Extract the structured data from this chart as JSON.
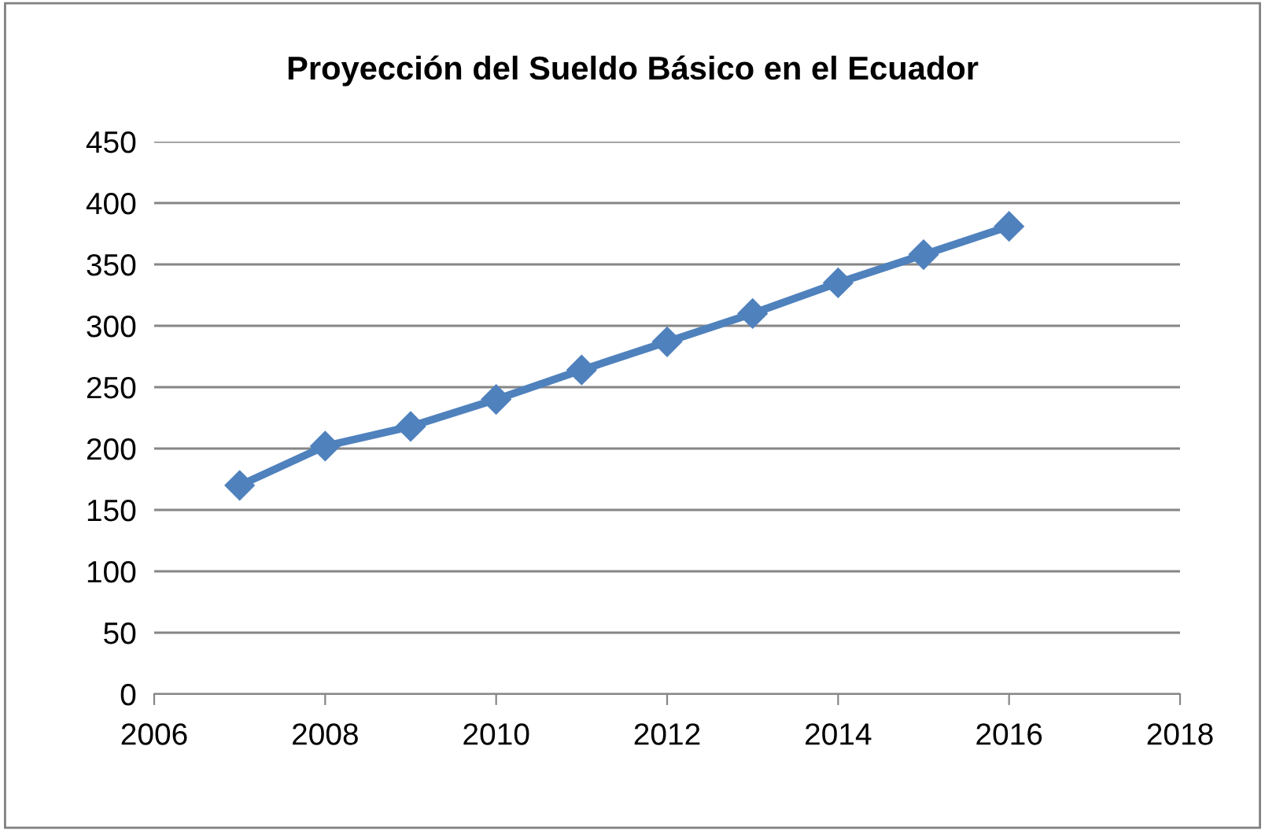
{
  "chart_data": {
    "type": "line",
    "title": "Proyección del Sueldo Básico en el Ecuador",
    "x": [
      2007,
      2008,
      2009,
      2010,
      2011,
      2012,
      2013,
      2014,
      2015,
      2016
    ],
    "series": [
      {
        "color": "#4f81bd",
        "values": [
          170,
          202,
          218,
          240,
          264,
          287,
          310,
          335,
          358,
          381
        ]
      }
    ],
    "xlim": [
      2006,
      2018
    ],
    "xticks": [
      2006,
      2008,
      2010,
      2012,
      2014,
      2016,
      2018
    ],
    "ylim": [
      0,
      450
    ],
    "yticks": [
      0,
      50,
      100,
      150,
      200,
      250,
      300,
      350,
      400,
      450
    ],
    "grid": "y",
    "legend": false,
    "marker": "diamond",
    "line_style": "solid"
  }
}
